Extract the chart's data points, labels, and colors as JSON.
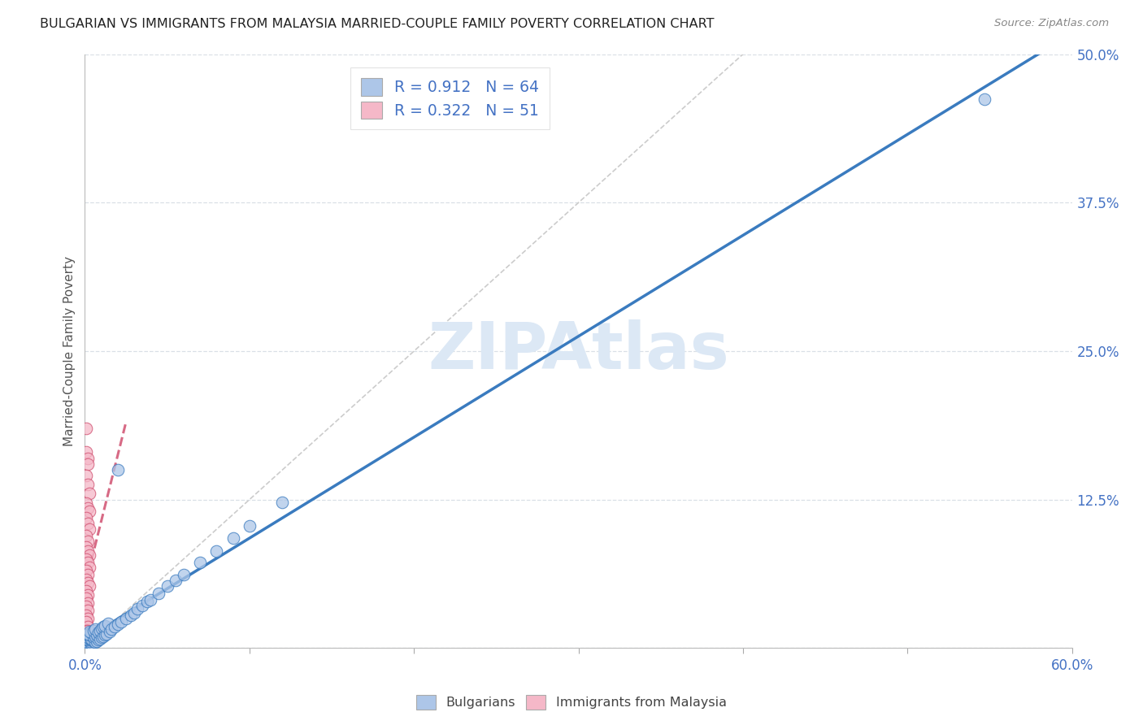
{
  "title": "BULGARIAN VS IMMIGRANTS FROM MALAYSIA MARRIED-COUPLE FAMILY POVERTY CORRELATION CHART",
  "source": "Source: ZipAtlas.com",
  "ylabel": "Married-Couple Family Poverty",
  "xlim": [
    0.0,
    0.6
  ],
  "ylim": [
    0.0,
    0.5
  ],
  "blue_R": 0.912,
  "blue_N": 64,
  "pink_R": 0.322,
  "pink_N": 51,
  "blue_color": "#adc6e8",
  "blue_line_color": "#3a7bbf",
  "pink_color": "#f5b8c8",
  "pink_line_color": "#d05070",
  "watermark": "ZIPAtlas",
  "watermark_color": "#dce8f5",
  "grid_color": "#d0d8e0",
  "axis_color": "#4472c4",
  "title_color": "#222222",
  "blue_scatter_x": [
    0.001,
    0.002,
    0.003,
    0.001,
    0.002,
    0.001,
    0.003,
    0.002,
    0.004,
    0.003,
    0.002,
    0.001,
    0.003,
    0.004,
    0.002,
    0.003,
    0.005,
    0.004,
    0.003,
    0.002,
    0.006,
    0.005,
    0.004,
    0.003,
    0.007,
    0.006,
    0.005,
    0.008,
    0.007,
    0.006,
    0.009,
    0.008,
    0.01,
    0.009,
    0.011,
    0.01,
    0.012,
    0.011,
    0.013,
    0.012,
    0.015,
    0.014,
    0.016,
    0.018,
    0.02,
    0.022,
    0.025,
    0.028,
    0.03,
    0.032,
    0.035,
    0.038,
    0.04,
    0.045,
    0.05,
    0.055,
    0.06,
    0.07,
    0.08,
    0.09,
    0.1,
    0.12,
    0.02,
    0.547
  ],
  "blue_scatter_y": [
    0.001,
    0.002,
    0.001,
    0.003,
    0.004,
    0.002,
    0.003,
    0.005,
    0.004,
    0.006,
    0.007,
    0.008,
    0.008,
    0.007,
    0.009,
    0.01,
    0.006,
    0.008,
    0.011,
    0.012,
    0.005,
    0.009,
    0.013,
    0.014,
    0.006,
    0.01,
    0.015,
    0.007,
    0.011,
    0.016,
    0.008,
    0.013,
    0.009,
    0.015,
    0.01,
    0.017,
    0.011,
    0.018,
    0.012,
    0.019,
    0.014,
    0.021,
    0.016,
    0.018,
    0.02,
    0.022,
    0.025,
    0.028,
    0.03,
    0.033,
    0.036,
    0.039,
    0.041,
    0.046,
    0.052,
    0.057,
    0.062,
    0.072,
    0.082,
    0.093,
    0.103,
    0.123,
    0.15,
    0.462
  ],
  "pink_scatter_x": [
    0.001,
    0.001,
    0.002,
    0.002,
    0.001,
    0.002,
    0.003,
    0.001,
    0.002,
    0.003,
    0.001,
    0.002,
    0.003,
    0.001,
    0.002,
    0.001,
    0.002,
    0.003,
    0.001,
    0.002,
    0.003,
    0.001,
    0.002,
    0.001,
    0.002,
    0.003,
    0.001,
    0.002,
    0.001,
    0.002,
    0.001,
    0.002,
    0.001,
    0.002,
    0.001,
    0.002,
    0.001,
    0.002,
    0.001,
    0.002,
    0.001,
    0.002,
    0.003,
    0.001,
    0.002,
    0.001,
    0.002,
    0.001,
    0.002,
    0.001,
    0.002
  ],
  "pink_scatter_y": [
    0.185,
    0.165,
    0.16,
    0.155,
    0.145,
    0.138,
    0.13,
    0.122,
    0.118,
    0.115,
    0.11,
    0.105,
    0.1,
    0.095,
    0.09,
    0.085,
    0.082,
    0.078,
    0.075,
    0.072,
    0.068,
    0.065,
    0.062,
    0.058,
    0.055,
    0.052,
    0.048,
    0.045,
    0.042,
    0.038,
    0.035,
    0.032,
    0.028,
    0.025,
    0.022,
    0.018,
    0.015,
    0.012,
    0.01,
    0.008,
    0.006,
    0.005,
    0.004,
    0.003,
    0.002,
    0.001,
    0.015,
    0.01,
    0.008,
    0.005,
    0.003
  ],
  "ref_line_x0": 0.0,
  "ref_line_y0": 0.0,
  "ref_line_x1": 0.4,
  "ref_line_y1": 0.5
}
